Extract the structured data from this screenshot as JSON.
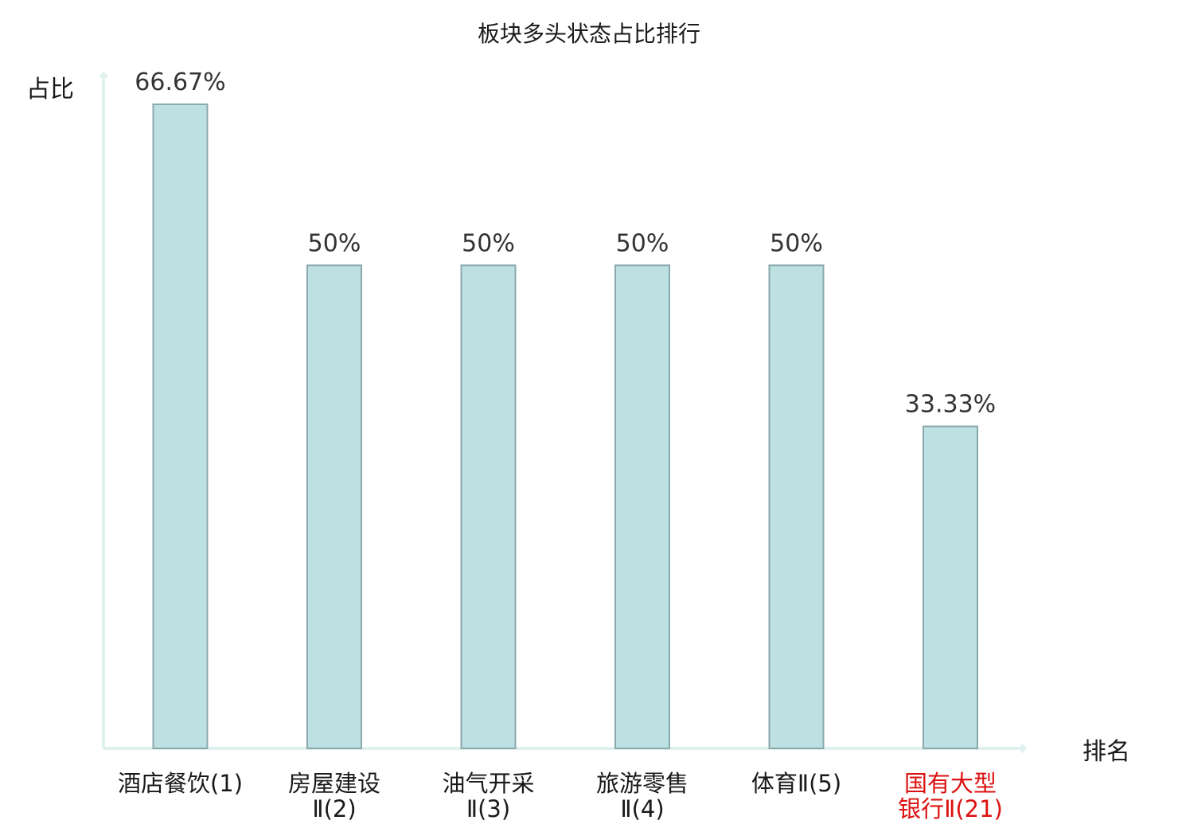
{
  "chart_data": {
    "type": "bar",
    "title": "板块多头状态占比排行",
    "ylabel": "占比",
    "xlabel": "排名",
    "categories": [
      [
        "酒店餐饮(1)"
      ],
      [
        "房屋建设",
        "Ⅱ(2)"
      ],
      [
        "油气开采",
        "Ⅱ(3)"
      ],
      [
        "旅游零售",
        "Ⅱ(4)"
      ],
      [
        "体育Ⅱ(5)"
      ],
      [
        "国有大型",
        "银行Ⅱ(21)"
      ]
    ],
    "values": [
      66.67,
      50,
      50,
      50,
      50,
      33.33
    ],
    "value_labels": [
      "66.67%",
      "50%",
      "50%",
      "50%",
      "50%",
      "33.33%"
    ],
    "highlight_index": 5,
    "ylim": [
      0,
      66.67
    ],
    "grid": false,
    "colors": {
      "bar_fill": "#bde0e3",
      "bar_stroke": "#8aa9ab",
      "axis": "#dff1ef",
      "highlight_text": "#dd1111"
    }
  }
}
